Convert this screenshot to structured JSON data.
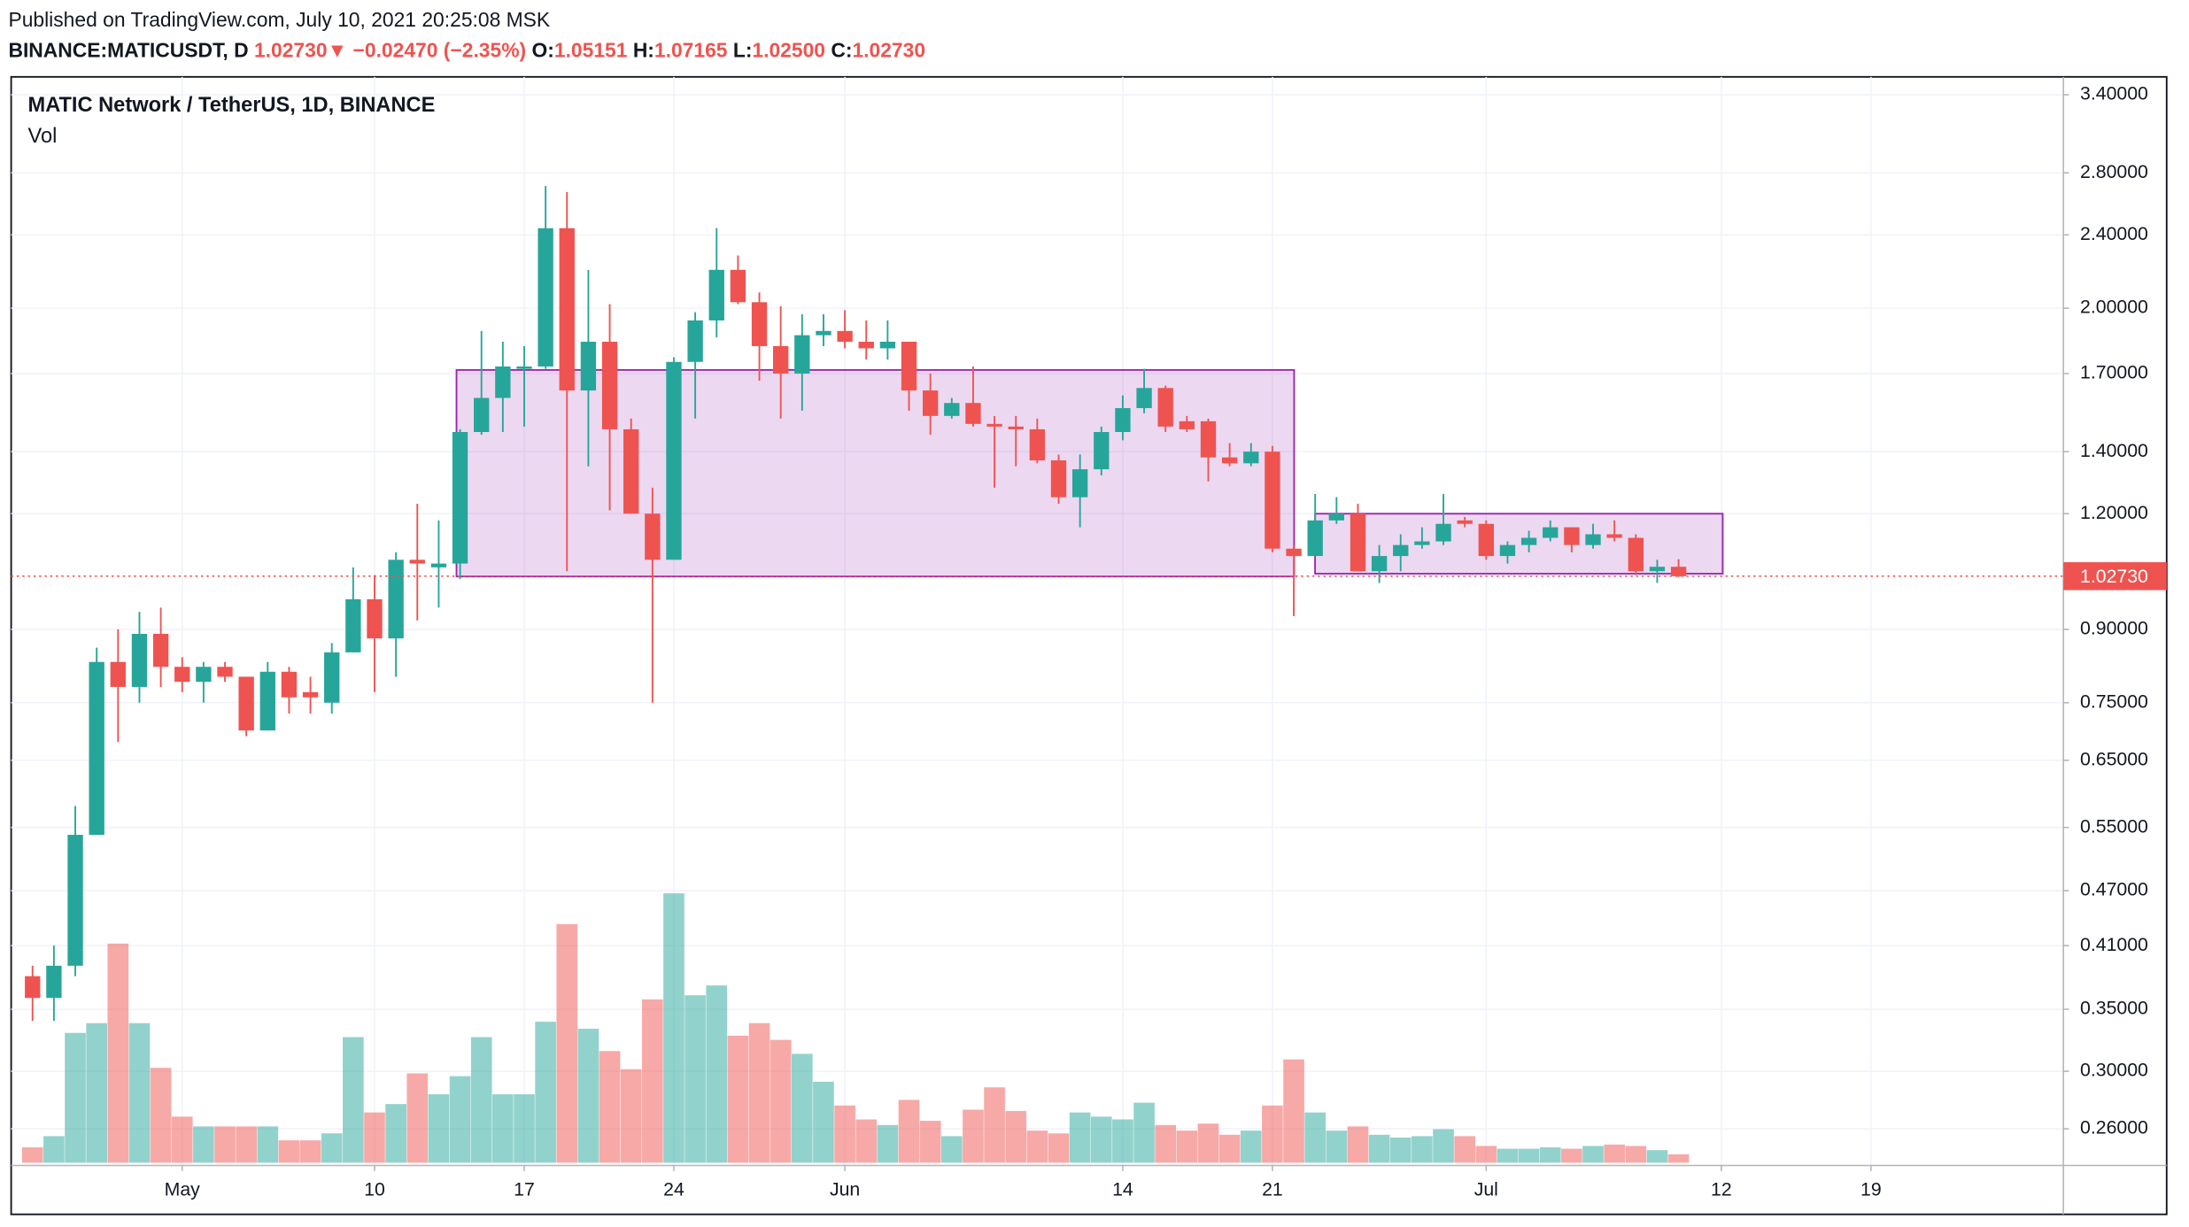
{
  "header": {
    "published": "Published on TradingView.com, July 10, 2021 20:25:08 MSK",
    "symbol": "BINANCE:MATICUSDT, D",
    "price": "1.02730",
    "arrow": "▼",
    "change": "−0.02470 (−2.35%)",
    "ohlc": [
      {
        "label": "O:",
        "value": "1.05151"
      },
      {
        "label": "H:",
        "value": "1.07165"
      },
      {
        "label": "L:",
        "value": "1.02500"
      },
      {
        "label": "C:",
        "value": "1.02730"
      }
    ]
  },
  "chart_data": {
    "type": "candlestick",
    "log_scale": true,
    "grid": true,
    "up_color": "#26a69a",
    "down_color": "#ef5350",
    "x": [
      "2021-04-24",
      "2021-04-25",
      "2021-04-26",
      "2021-04-27",
      "2021-04-28",
      "2021-04-29",
      "2021-04-30",
      "2021-05-01",
      "2021-05-02",
      "2021-05-03",
      "2021-05-04",
      "2021-05-05",
      "2021-05-06",
      "2021-05-07",
      "2021-05-08",
      "2021-05-09",
      "2021-05-10",
      "2021-05-11",
      "2021-05-12",
      "2021-05-13",
      "2021-05-14",
      "2021-05-15",
      "2021-05-16",
      "2021-05-17",
      "2021-05-18",
      "2021-05-19",
      "2021-05-20",
      "2021-05-21",
      "2021-05-22",
      "2021-05-23",
      "2021-05-24",
      "2021-05-25",
      "2021-05-26",
      "2021-05-27",
      "2021-05-28",
      "2021-05-29",
      "2021-05-30",
      "2021-05-31",
      "2021-06-01",
      "2021-06-02",
      "2021-06-03",
      "2021-06-04",
      "2021-06-05",
      "2021-06-06",
      "2021-06-07",
      "2021-06-08",
      "2021-06-09",
      "2021-06-10",
      "2021-06-11",
      "2021-06-12",
      "2021-06-13",
      "2021-06-14",
      "2021-06-15",
      "2021-06-16",
      "2021-06-17",
      "2021-06-18",
      "2021-06-19",
      "2021-06-20",
      "2021-06-21",
      "2021-06-22",
      "2021-06-23",
      "2021-06-24",
      "2021-06-25",
      "2021-06-26",
      "2021-06-27",
      "2021-06-28",
      "2021-06-29",
      "2021-06-30",
      "2021-07-01",
      "2021-07-02",
      "2021-07-03",
      "2021-07-04",
      "2021-07-05",
      "2021-07-06",
      "2021-07-07",
      "2021-07-08",
      "2021-07-09",
      "2021-07-10"
    ],
    "series": [
      {
        "name": "MATIC Network / TetherUS, 1D, BINANCE",
        "open": [
          0.38,
          0.36,
          0.39,
          0.54,
          0.83,
          0.78,
          0.89,
          0.82,
          0.79,
          0.82,
          0.8,
          0.7,
          0.81,
          0.77,
          0.75,
          0.85,
          0.97,
          0.88,
          1.07,
          1.05,
          1.06,
          1.47,
          1.6,
          1.72,
          1.73,
          2.44,
          1.63,
          1.84,
          1.48,
          1.2,
          1.07,
          1.75,
          1.94,
          2.2,
          2.03,
          1.82,
          1.7,
          1.87,
          1.89,
          1.84,
          1.81,
          1.84,
          1.63,
          1.53,
          1.58,
          1.5,
          1.49,
          1.48,
          1.37,
          1.25,
          1.34,
          1.47,
          1.56,
          1.64,
          1.51,
          1.51,
          1.38,
          1.36,
          1.4,
          1.1,
          1.08,
          1.18,
          1.2,
          1.04,
          1.08,
          1.11,
          1.12,
          1.18,
          1.17,
          1.08,
          1.11,
          1.13,
          1.16,
          1.11,
          1.14,
          1.13,
          1.04,
          1.05151
        ],
        "high": [
          0.39,
          0.41,
          0.58,
          0.86,
          0.9,
          0.94,
          0.95,
          0.84,
          0.83,
          0.83,
          0.8,
          0.83,
          0.82,
          0.8,
          0.87,
          1.05,
          1.03,
          1.09,
          1.23,
          1.18,
          1.48,
          1.89,
          1.84,
          1.82,
          2.71,
          2.67,
          2.2,
          2.02,
          1.52,
          1.28,
          1.77,
          1.98,
          2.44,
          2.28,
          2.08,
          2.01,
          1.97,
          1.97,
          1.99,
          1.94,
          1.94,
          1.84,
          1.7,
          1.6,
          1.73,
          1.53,
          1.53,
          1.52,
          1.39,
          1.39,
          1.49,
          1.61,
          1.72,
          1.65,
          1.53,
          1.52,
          1.43,
          1.43,
          1.42,
          1.11,
          1.26,
          1.25,
          1.23,
          1.11,
          1.14,
          1.16,
          1.26,
          1.19,
          1.18,
          1.12,
          1.15,
          1.18,
          1.16,
          1.17,
          1.18,
          1.14,
          1.07,
          1.07165
        ],
        "low": [
          0.34,
          0.34,
          0.38,
          0.54,
          0.68,
          0.75,
          0.78,
          0.77,
          0.75,
          0.79,
          0.69,
          0.7,
          0.73,
          0.73,
          0.73,
          0.85,
          0.77,
          0.8,
          0.92,
          0.95,
          1.02,
          1.46,
          1.47,
          1.49,
          1.72,
          1.04,
          1.35,
          1.21,
          1.2,
          0.75,
          1.07,
          1.52,
          1.86,
          2.02,
          1.67,
          1.52,
          1.55,
          1.82,
          1.81,
          1.76,
          1.76,
          1.55,
          1.46,
          1.52,
          1.49,
          1.28,
          1.35,
          1.36,
          1.23,
          1.16,
          1.32,
          1.44,
          1.54,
          1.47,
          1.47,
          1.3,
          1.35,
          1.35,
          1.09,
          0.93,
          1.08,
          1.17,
          1.04,
          1.01,
          1.04,
          1.1,
          1.11,
          1.16,
          1.07,
          1.06,
          1.09,
          1.12,
          1.09,
          1.1,
          1.12,
          1.03,
          1.01,
          1.025
        ],
        "close": [
          0.36,
          0.39,
          0.54,
          0.83,
          0.78,
          0.89,
          0.82,
          0.79,
          0.82,
          0.8,
          0.7,
          0.81,
          0.76,
          0.76,
          0.85,
          0.97,
          0.88,
          1.07,
          1.06,
          1.06,
          1.47,
          1.6,
          1.73,
          1.73,
          2.44,
          1.63,
          1.84,
          1.48,
          1.2,
          1.07,
          1.75,
          1.94,
          2.2,
          2.03,
          1.82,
          1.7,
          1.87,
          1.89,
          1.84,
          1.81,
          1.84,
          1.63,
          1.53,
          1.58,
          1.5,
          1.49,
          1.48,
          1.37,
          1.25,
          1.34,
          1.47,
          1.56,
          1.64,
          1.49,
          1.48,
          1.38,
          1.36,
          1.4,
          1.1,
          1.08,
          1.18,
          1.2,
          1.04,
          1.08,
          1.11,
          1.12,
          1.17,
          1.17,
          1.08,
          1.11,
          1.13,
          1.16,
          1.11,
          1.14,
          1.13,
          1.04,
          1.05151,
          1.0273
        ]
      },
      {
        "name": "Vol",
        "values": [
          11,
          19,
          93,
          100,
          157,
          100,
          68,
          33,
          26,
          26,
          26,
          26,
          16,
          16,
          21,
          90,
          36,
          42,
          64,
          49,
          62,
          90,
          49,
          49,
          101,
          171,
          96,
          80,
          67,
          117,
          193,
          120,
          127,
          91,
          100,
          88,
          78,
          58,
          41,
          31,
          27,
          45,
          30,
          19,
          38,
          54,
          37,
          23,
          21,
          36,
          33,
          31,
          43,
          27,
          23,
          28,
          20,
          23,
          41,
          74,
          36,
          23,
          26,
          20,
          18,
          19,
          24,
          19,
          12,
          10,
          10,
          11,
          10,
          12,
          13,
          12,
          9,
          6
        ]
      }
    ],
    "last_price": {
      "value": 1.0273,
      "label": "1.02730"
    },
    "ylim": [
      0.239,
      3.53
    ],
    "yticks": [
      {
        "value": 3.4,
        "label": "3.40000"
      },
      {
        "value": 2.8,
        "label": "2.80000"
      },
      {
        "value": 2.4,
        "label": "2.40000"
      },
      {
        "value": 2.0,
        "label": "2.00000"
      },
      {
        "value": 1.7,
        "label": "1.70000"
      },
      {
        "value": 1.4,
        "label": "1.40000"
      },
      {
        "value": 1.2,
        "label": "1.20000"
      },
      {
        "value": 0.9,
        "label": "0.90000"
      },
      {
        "value": 0.75,
        "label": "0.75000"
      },
      {
        "value": 0.65,
        "label": "0.65000"
      },
      {
        "value": 0.55,
        "label": "0.55000"
      },
      {
        "value": 0.47,
        "label": "0.47000"
      },
      {
        "value": 0.41,
        "label": "0.41000"
      },
      {
        "value": 0.35,
        "label": "0.35000"
      },
      {
        "value": 0.3,
        "label": "0.30000"
      },
      {
        "value": 0.26,
        "label": "0.26000"
      }
    ],
    "xlim": [
      "2021-04-23",
      "2021-07-28"
    ],
    "xticks": [
      {
        "value": "2021-05-01",
        "label": "May"
      },
      {
        "value": "2021-05-10",
        "label": "10"
      },
      {
        "value": "2021-05-17",
        "label": "17"
      },
      {
        "value": "2021-05-24",
        "label": "24"
      },
      {
        "value": "2021-06-01",
        "label": "Jun"
      },
      {
        "value": "2021-06-14",
        "label": "14"
      },
      {
        "value": "2021-06-21",
        "label": "21"
      },
      {
        "value": "2021-07-01",
        "label": "Jul"
      },
      {
        "value": "2021-07-12",
        "label": "12"
      },
      {
        "value": "2021-07-19",
        "label": "19"
      }
    ]
  }
}
